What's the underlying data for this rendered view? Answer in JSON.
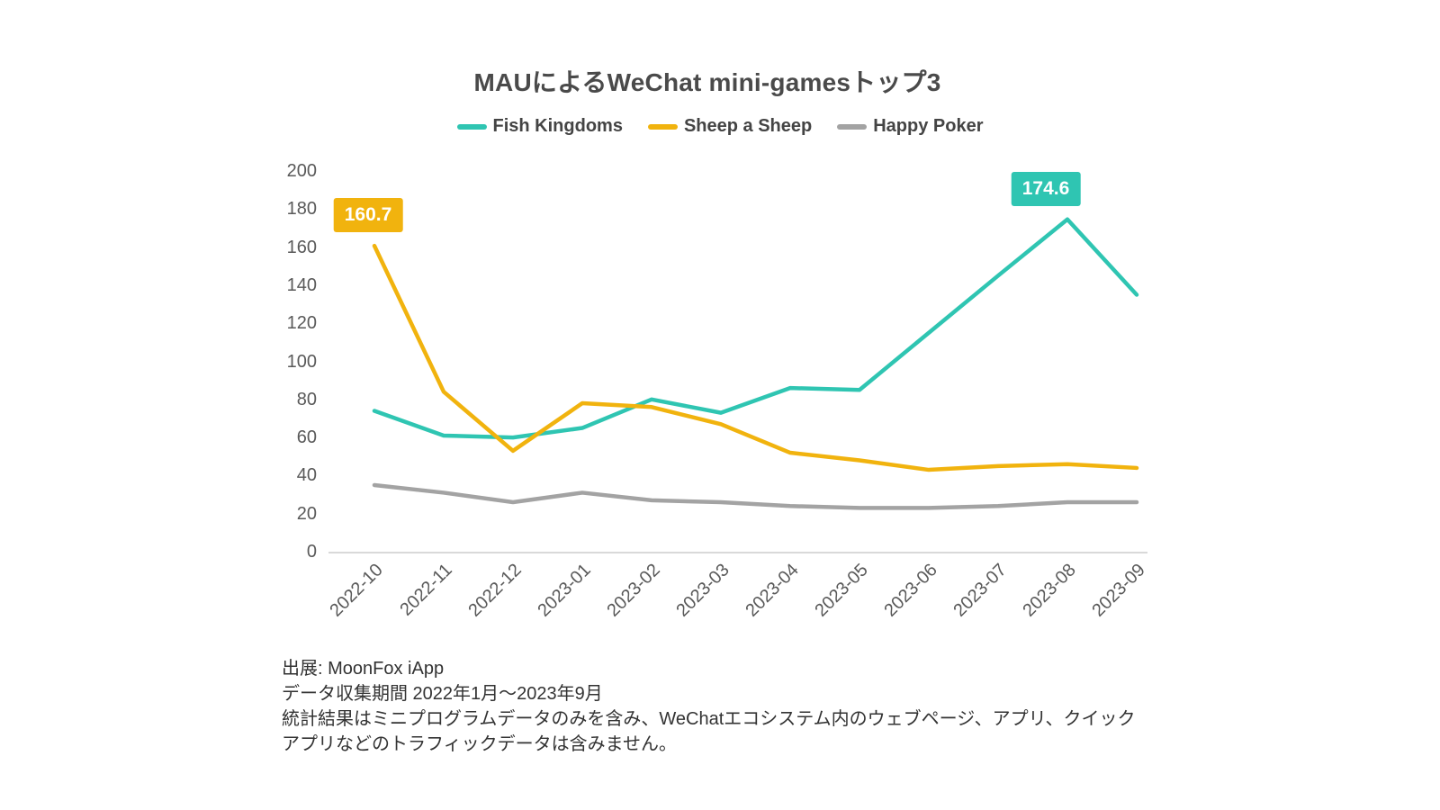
{
  "chart_data": {
    "type": "line",
    "title": "MAUによるWeChat mini-gamesトップ3",
    "categories": [
      "2022-10",
      "2022-11",
      "2022-12",
      "2023-01",
      "2023-02",
      "2023-03",
      "2023-04",
      "2023-05",
      "2023-06",
      "2023-07",
      "2023-08",
      "2023-09"
    ],
    "series": [
      {
        "name": "Fish Kingdoms",
        "color": "#2fc5b2",
        "values": [
          74,
          61,
          60,
          65,
          80,
          73,
          86,
          85,
          115,
          145,
          174.6,
          135
        ]
      },
      {
        "name": "Sheep a Sheep",
        "color": "#f1b30e",
        "values": [
          160.7,
          84,
          53,
          78,
          76,
          67,
          52,
          48,
          43,
          45,
          46,
          44
        ]
      },
      {
        "name": "Happy Poker",
        "color": "#a3a3a3",
        "values": [
          35,
          31,
          26,
          31,
          27,
          26,
          24,
          23,
          23,
          24,
          26,
          26
        ]
      }
    ],
    "ylim": [
      0,
      200
    ],
    "ytick_step": 20,
    "grid": false,
    "legend_position": "top-center",
    "axis_color": "#d9d9d9",
    "annotations": [
      {
        "series": 0,
        "point": 10,
        "label": "174.6",
        "dx": -24
      },
      {
        "series": 1,
        "point": 0,
        "label": "160.7",
        "dx": -7
      }
    ]
  },
  "footer": {
    "lines": [
      "出展: MoonFox iApp",
      "データ収集期間 2022年1月～2023年9月",
      "統計結果はミニプログラムデータのみを含み、WeChatエコシステム内のウェブページ、アプリ、クイック",
      "アプリなどのトラフィックデータは含みません。"
    ]
  }
}
